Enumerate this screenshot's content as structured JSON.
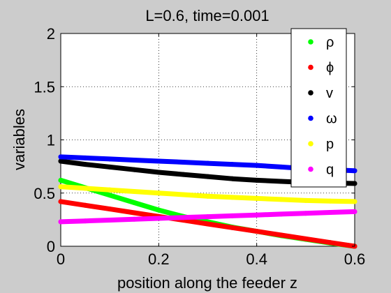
{
  "chart_data": {
    "type": "scatter",
    "title": "L=0.6, time=0.001",
    "xlabel": "position along the feeder z",
    "ylabel": "variables",
    "xlim": [
      0,
      0.6
    ],
    "ylim": [
      0,
      2
    ],
    "xticks": [
      0,
      0.2,
      0.4,
      0.6
    ],
    "xtick_labels": [
      "0",
      "0.2",
      "0.4",
      "0.6"
    ],
    "yticks": [
      0,
      0.5,
      1,
      1.5,
      2
    ],
    "ytick_labels": [
      "0",
      "0.5",
      "1",
      "1.5",
      "2"
    ],
    "grid": true,
    "legend_position": "top-right",
    "x": [
      0,
      0.05,
      0.1,
      0.15,
      0.2,
      0.25,
      0.3,
      0.35,
      0.4,
      0.45,
      0.5,
      0.55,
      0.6
    ],
    "series": [
      {
        "name": "ρ",
        "color": "#00ff00",
        "values": [
          0.62,
          0.55,
          0.48,
          0.41,
          0.34,
          0.28,
          0.23,
          0.18,
          0.14,
          0.1,
          0.065,
          0.03,
          0.0
        ]
      },
      {
        "name": "ϕ",
        "color": "#ff0000",
        "values": [
          0.42,
          0.385,
          0.35,
          0.315,
          0.28,
          0.245,
          0.21,
          0.175,
          0.14,
          0.105,
          0.07,
          0.035,
          0.0
        ]
      },
      {
        "name": "v",
        "color": "#000000",
        "values": [
          0.8,
          0.77,
          0.745,
          0.72,
          0.695,
          0.675,
          0.655,
          0.635,
          0.62,
          0.61,
          0.6,
          0.595,
          0.59
        ]
      },
      {
        "name": "ω",
        "color": "#0000ff",
        "values": [
          0.84,
          0.83,
          0.82,
          0.81,
          0.8,
          0.79,
          0.78,
          0.77,
          0.76,
          0.745,
          0.73,
          0.72,
          0.71
        ]
      },
      {
        "name": "p",
        "color": "#ffff00",
        "values": [
          0.56,
          0.545,
          0.53,
          0.515,
          0.5,
          0.485,
          0.47,
          0.46,
          0.45,
          0.44,
          0.43,
          0.425,
          0.42
        ]
      },
      {
        "name": "q",
        "color": "#ff00ff",
        "values": [
          0.23,
          0.238,
          0.246,
          0.254,
          0.262,
          0.27,
          0.278,
          0.286,
          0.294,
          0.302,
          0.31,
          0.318,
          0.325
        ]
      }
    ]
  }
}
